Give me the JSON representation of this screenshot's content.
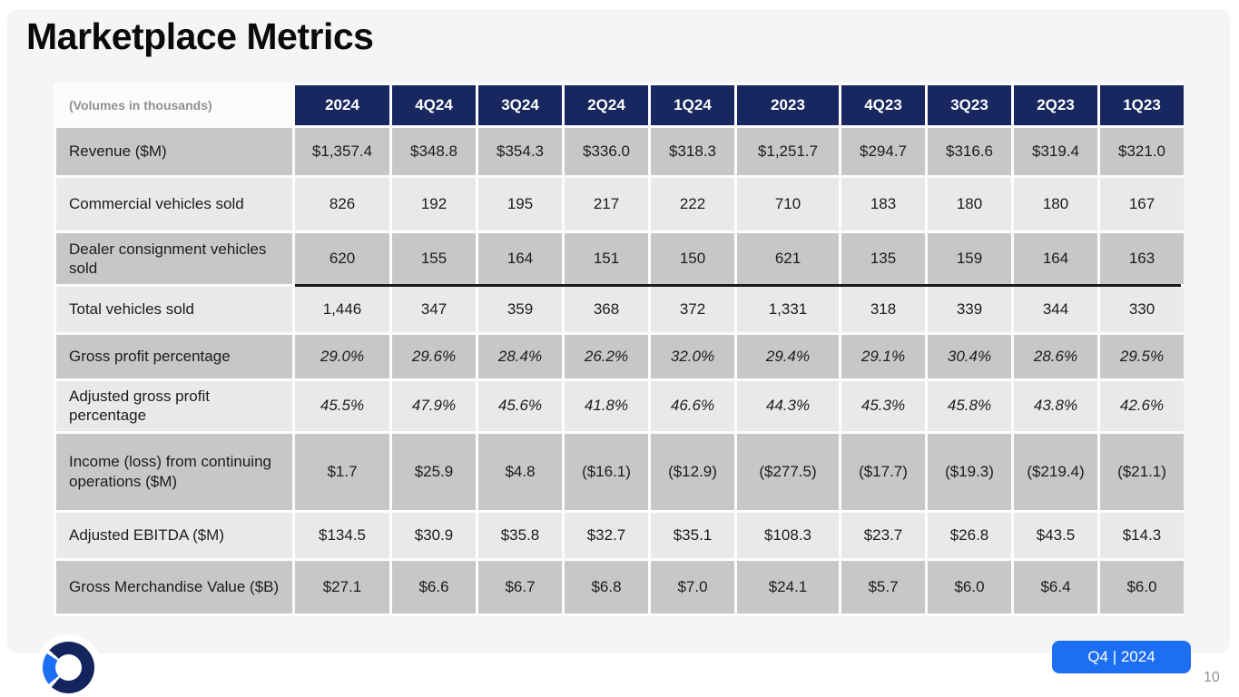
{
  "slide": {
    "title": "Marketplace Metrics",
    "badge_label": "Q4 | 2024",
    "page_number": "10"
  },
  "table": {
    "corner_label": "(Volumes in thousands)",
    "columns": [
      "2024",
      "4Q24",
      "3Q24",
      "2Q24",
      "1Q24",
      "2023",
      "4Q23",
      "3Q23",
      "2Q23",
      "1Q23"
    ],
    "rows": [
      {
        "label": "Revenue ($M)",
        "values": [
          "$1,357.4",
          "$348.8",
          "$354.3",
          "$336.0",
          "$318.3",
          "$1,251.7",
          "$294.7",
          "$316.6",
          "$319.4",
          "$321.0"
        ]
      },
      {
        "label": "Commercial vehicles sold",
        "values": [
          "826",
          "192",
          "195",
          "217",
          "222",
          "710",
          "183",
          "180",
          "180",
          "167"
        ]
      },
      {
        "label": "Dealer consignment vehicles sold",
        "values": [
          "620",
          "155",
          "164",
          "151",
          "150",
          "621",
          "135",
          "159",
          "164",
          "163"
        ]
      },
      {
        "label": "Total vehicles sold",
        "values": [
          "1,446",
          "347",
          "359",
          "368",
          "372",
          "1,331",
          "318",
          "339",
          "344",
          "330"
        ]
      },
      {
        "label": "Gross profit percentage",
        "values": [
          "29.0%",
          "29.6%",
          "28.4%",
          "26.2%",
          "32.0%",
          "29.4%",
          "29.1%",
          "30.4%",
          "28.6%",
          "29.5%"
        ]
      },
      {
        "label": "Adjusted gross profit percentage",
        "values": [
          "45.5%",
          "47.9%",
          "45.6%",
          "41.8%",
          "46.6%",
          "44.3%",
          "45.3%",
          "45.8%",
          "43.8%",
          "42.6%"
        ]
      },
      {
        "label": "Income (loss) from continuing operations ($M)",
        "values": [
          "$1.7",
          "$25.9",
          "$4.8",
          "($16.1)",
          "($12.9)",
          "($277.5)",
          "($17.7)",
          "($19.3)",
          "($219.4)",
          "($21.1)"
        ]
      },
      {
        "label": "Adjusted EBITDA ($M)",
        "values": [
          "$134.5",
          "$30.9",
          "$35.8",
          "$32.7",
          "$35.1",
          "$108.3",
          "$23.7",
          "$26.8",
          "$43.5",
          "$14.3"
        ]
      },
      {
        "label": "Gross Merchandise Value ($B)",
        "values": [
          "$27.1",
          "$6.6",
          "$6.7",
          "$6.8",
          "$7.0",
          "$24.1",
          "$5.7",
          "$6.0",
          "$6.4",
          "$6.0"
        ]
      }
    ]
  },
  "icons": {
    "logo": "openlane-ring-logo"
  },
  "colors": {
    "header_navy": "#18275f",
    "row_dark": "#c7c7c7",
    "row_light": "#e9e9e9",
    "badge_blue": "#1c6ef2",
    "logo_navy": "#14245c",
    "logo_blue": "#1c6ef2",
    "sum_line": "#1a1a1a"
  }
}
